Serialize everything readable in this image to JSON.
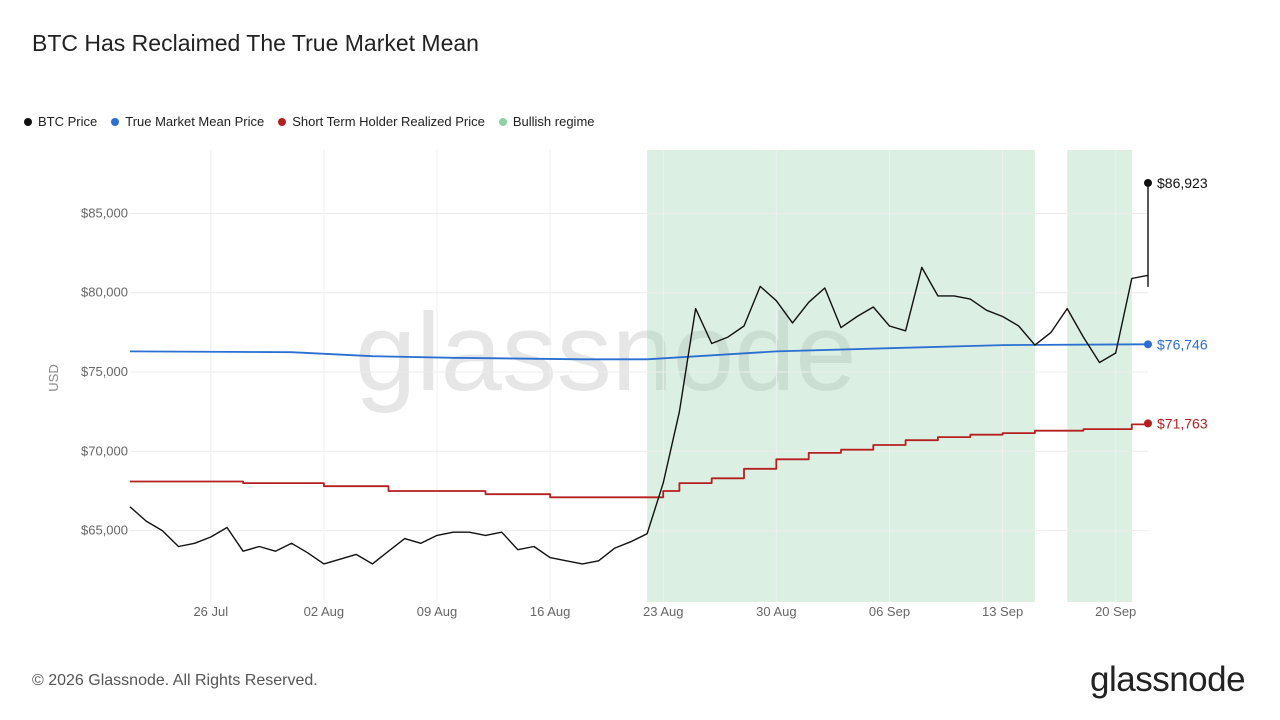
{
  "chart_data": {
    "type": "line",
    "title": "BTC Has Reclaimed The True Market Mean",
    "ylabel": "USD",
    "ylim": [
      60500,
      89000
    ],
    "y_ticks": [
      65000,
      70000,
      75000,
      80000,
      85000
    ],
    "y_tick_labels": [
      "$65,000",
      "$70,000",
      "$75,000",
      "$80,000",
      "$85,000"
    ],
    "x_start": "2024-07-21",
    "x_end": "2024-09-22",
    "x_ticks": [
      "2024-07-26",
      "2024-08-02",
      "2024-08-09",
      "2024-08-16",
      "2024-08-23",
      "2024-08-30",
      "2024-09-06",
      "2024-09-13",
      "2024-09-20"
    ],
    "x_tick_labels": [
      "26 Jul",
      "02 Aug",
      "09 Aug",
      "16 Aug",
      "23 Aug",
      "30 Aug",
      "06 Sep",
      "13 Sep",
      "20 Sep"
    ],
    "grid": true,
    "legend_position": "top-left",
    "bullish_regimes": [
      [
        "2024-08-22",
        "2024-09-15"
      ],
      [
        "2024-09-17",
        "2024-09-21"
      ]
    ],
    "series": [
      {
        "name": "BTC Price",
        "color": "#111111",
        "end_label": "$86,923",
        "points": [
          [
            "2024-07-21",
            66500
          ],
          [
            "2024-07-22",
            65600
          ],
          [
            "2024-07-23",
            65000
          ],
          [
            "2024-07-24",
            64000
          ],
          [
            "2024-07-25",
            64200
          ],
          [
            "2024-07-26",
            64600
          ],
          [
            "2024-07-27",
            65200
          ],
          [
            "2024-07-28",
            63700
          ],
          [
            "2024-07-29",
            64000
          ],
          [
            "2024-07-30",
            63700
          ],
          [
            "2024-07-31",
            64200
          ],
          [
            "2024-08-01",
            63600
          ],
          [
            "2024-08-02",
            62900
          ],
          [
            "2024-08-03",
            63200
          ],
          [
            "2024-08-04",
            63500
          ],
          [
            "2024-08-05",
            62900
          ],
          [
            "2024-08-06",
            63700
          ],
          [
            "2024-08-07",
            64500
          ],
          [
            "2024-08-08",
            64200
          ],
          [
            "2024-08-09",
            64700
          ],
          [
            "2024-08-10",
            64900
          ],
          [
            "2024-08-11",
            64900
          ],
          [
            "2024-08-12",
            64700
          ],
          [
            "2024-08-13",
            64900
          ],
          [
            "2024-08-14",
            63800
          ],
          [
            "2024-08-15",
            64000
          ],
          [
            "2024-08-16",
            63300
          ],
          [
            "2024-08-17",
            63100
          ],
          [
            "2024-08-18",
            62900
          ],
          [
            "2024-08-19",
            63100
          ],
          [
            "2024-08-20",
            63900
          ],
          [
            "2024-08-21",
            64300
          ],
          [
            "2024-08-22",
            64800
          ],
          [
            "2024-08-23",
            68000
          ],
          [
            "2024-08-24",
            72500
          ],
          [
            "2024-08-25",
            79000
          ],
          [
            "2024-08-26",
            76800
          ],
          [
            "2024-08-27",
            77200
          ],
          [
            "2024-08-28",
            77900
          ],
          [
            "2024-08-29",
            80400
          ],
          [
            "2024-08-30",
            79500
          ],
          [
            "2024-08-31",
            78100
          ],
          [
            "2024-09-01",
            79400
          ],
          [
            "2024-09-02",
            80300
          ],
          [
            "2024-09-03",
            77800
          ],
          [
            "2024-09-04",
            78500
          ],
          [
            "2024-09-05",
            79100
          ],
          [
            "2024-09-06",
            77900
          ],
          [
            "2024-09-07",
            77600
          ],
          [
            "2024-09-08",
            81600
          ],
          [
            "2024-09-09",
            79800
          ],
          [
            "2024-09-10",
            79800
          ],
          [
            "2024-09-11",
            79600
          ],
          [
            "2024-09-12",
            78900
          ],
          [
            "2024-09-13",
            78500
          ],
          [
            "2024-09-14",
            77900
          ],
          [
            "2024-09-15",
            76700
          ],
          [
            "2024-09-16",
            77500
          ],
          [
            "2024-09-17",
            79000
          ],
          [
            "2024-09-18",
            77200
          ],
          [
            "2024-09-19",
            75600
          ],
          [
            "2024-09-20",
            76200
          ],
          [
            "2024-09-21",
            80900
          ],
          [
            "2024-09-22",
            81100
          ],
          [
            "2024-09-23",
            80400
          ],
          [
            "2024-09-24",
            86923
          ]
        ]
      },
      {
        "name": "True Market Mean Price",
        "color": "#2a6fd1",
        "end_label": "$76,746",
        "points": [
          [
            "2024-07-21",
            76300
          ],
          [
            "2024-07-31",
            76250
          ],
          [
            "2024-08-05",
            76000
          ],
          [
            "2024-08-10",
            75900
          ],
          [
            "2024-08-18",
            75800
          ],
          [
            "2024-08-22",
            75800
          ],
          [
            "2024-08-30",
            76300
          ],
          [
            "2024-09-06",
            76500
          ],
          [
            "2024-09-13",
            76700
          ],
          [
            "2024-09-24",
            76746
          ]
        ]
      },
      {
        "name": "Short Term Holder Realized Price",
        "color": "#b51f1f",
        "end_label": "$71,763",
        "points": [
          [
            "2024-07-21",
            68100
          ],
          [
            "2024-07-28",
            68000
          ],
          [
            "2024-08-02",
            67800
          ],
          [
            "2024-08-06",
            67500
          ],
          [
            "2024-08-12",
            67300
          ],
          [
            "2024-08-16",
            67100
          ],
          [
            "2024-08-22",
            67100
          ],
          [
            "2024-08-23",
            67500
          ],
          [
            "2024-08-24",
            68000
          ],
          [
            "2024-08-26",
            68300
          ],
          [
            "2024-08-28",
            68900
          ],
          [
            "2024-08-30",
            69500
          ],
          [
            "2024-09-01",
            69900
          ],
          [
            "2024-09-03",
            70100
          ],
          [
            "2024-09-05",
            70400
          ],
          [
            "2024-09-07",
            70700
          ],
          [
            "2024-09-09",
            70900
          ],
          [
            "2024-09-11",
            71050
          ],
          [
            "2024-09-13",
            71150
          ],
          [
            "2024-09-15",
            71300
          ],
          [
            "2024-09-18",
            71400
          ],
          [
            "2024-09-21",
            71700
          ],
          [
            "2024-09-24",
            71763
          ]
        ]
      },
      {
        "name": "Bullish regime",
        "color": "#8fd0a6"
      }
    ]
  },
  "footer": {
    "copyright": "© 2026 Glassnode. All Rights Reserved.",
    "brand": "glassnode",
    "watermark": "glassnode"
  }
}
